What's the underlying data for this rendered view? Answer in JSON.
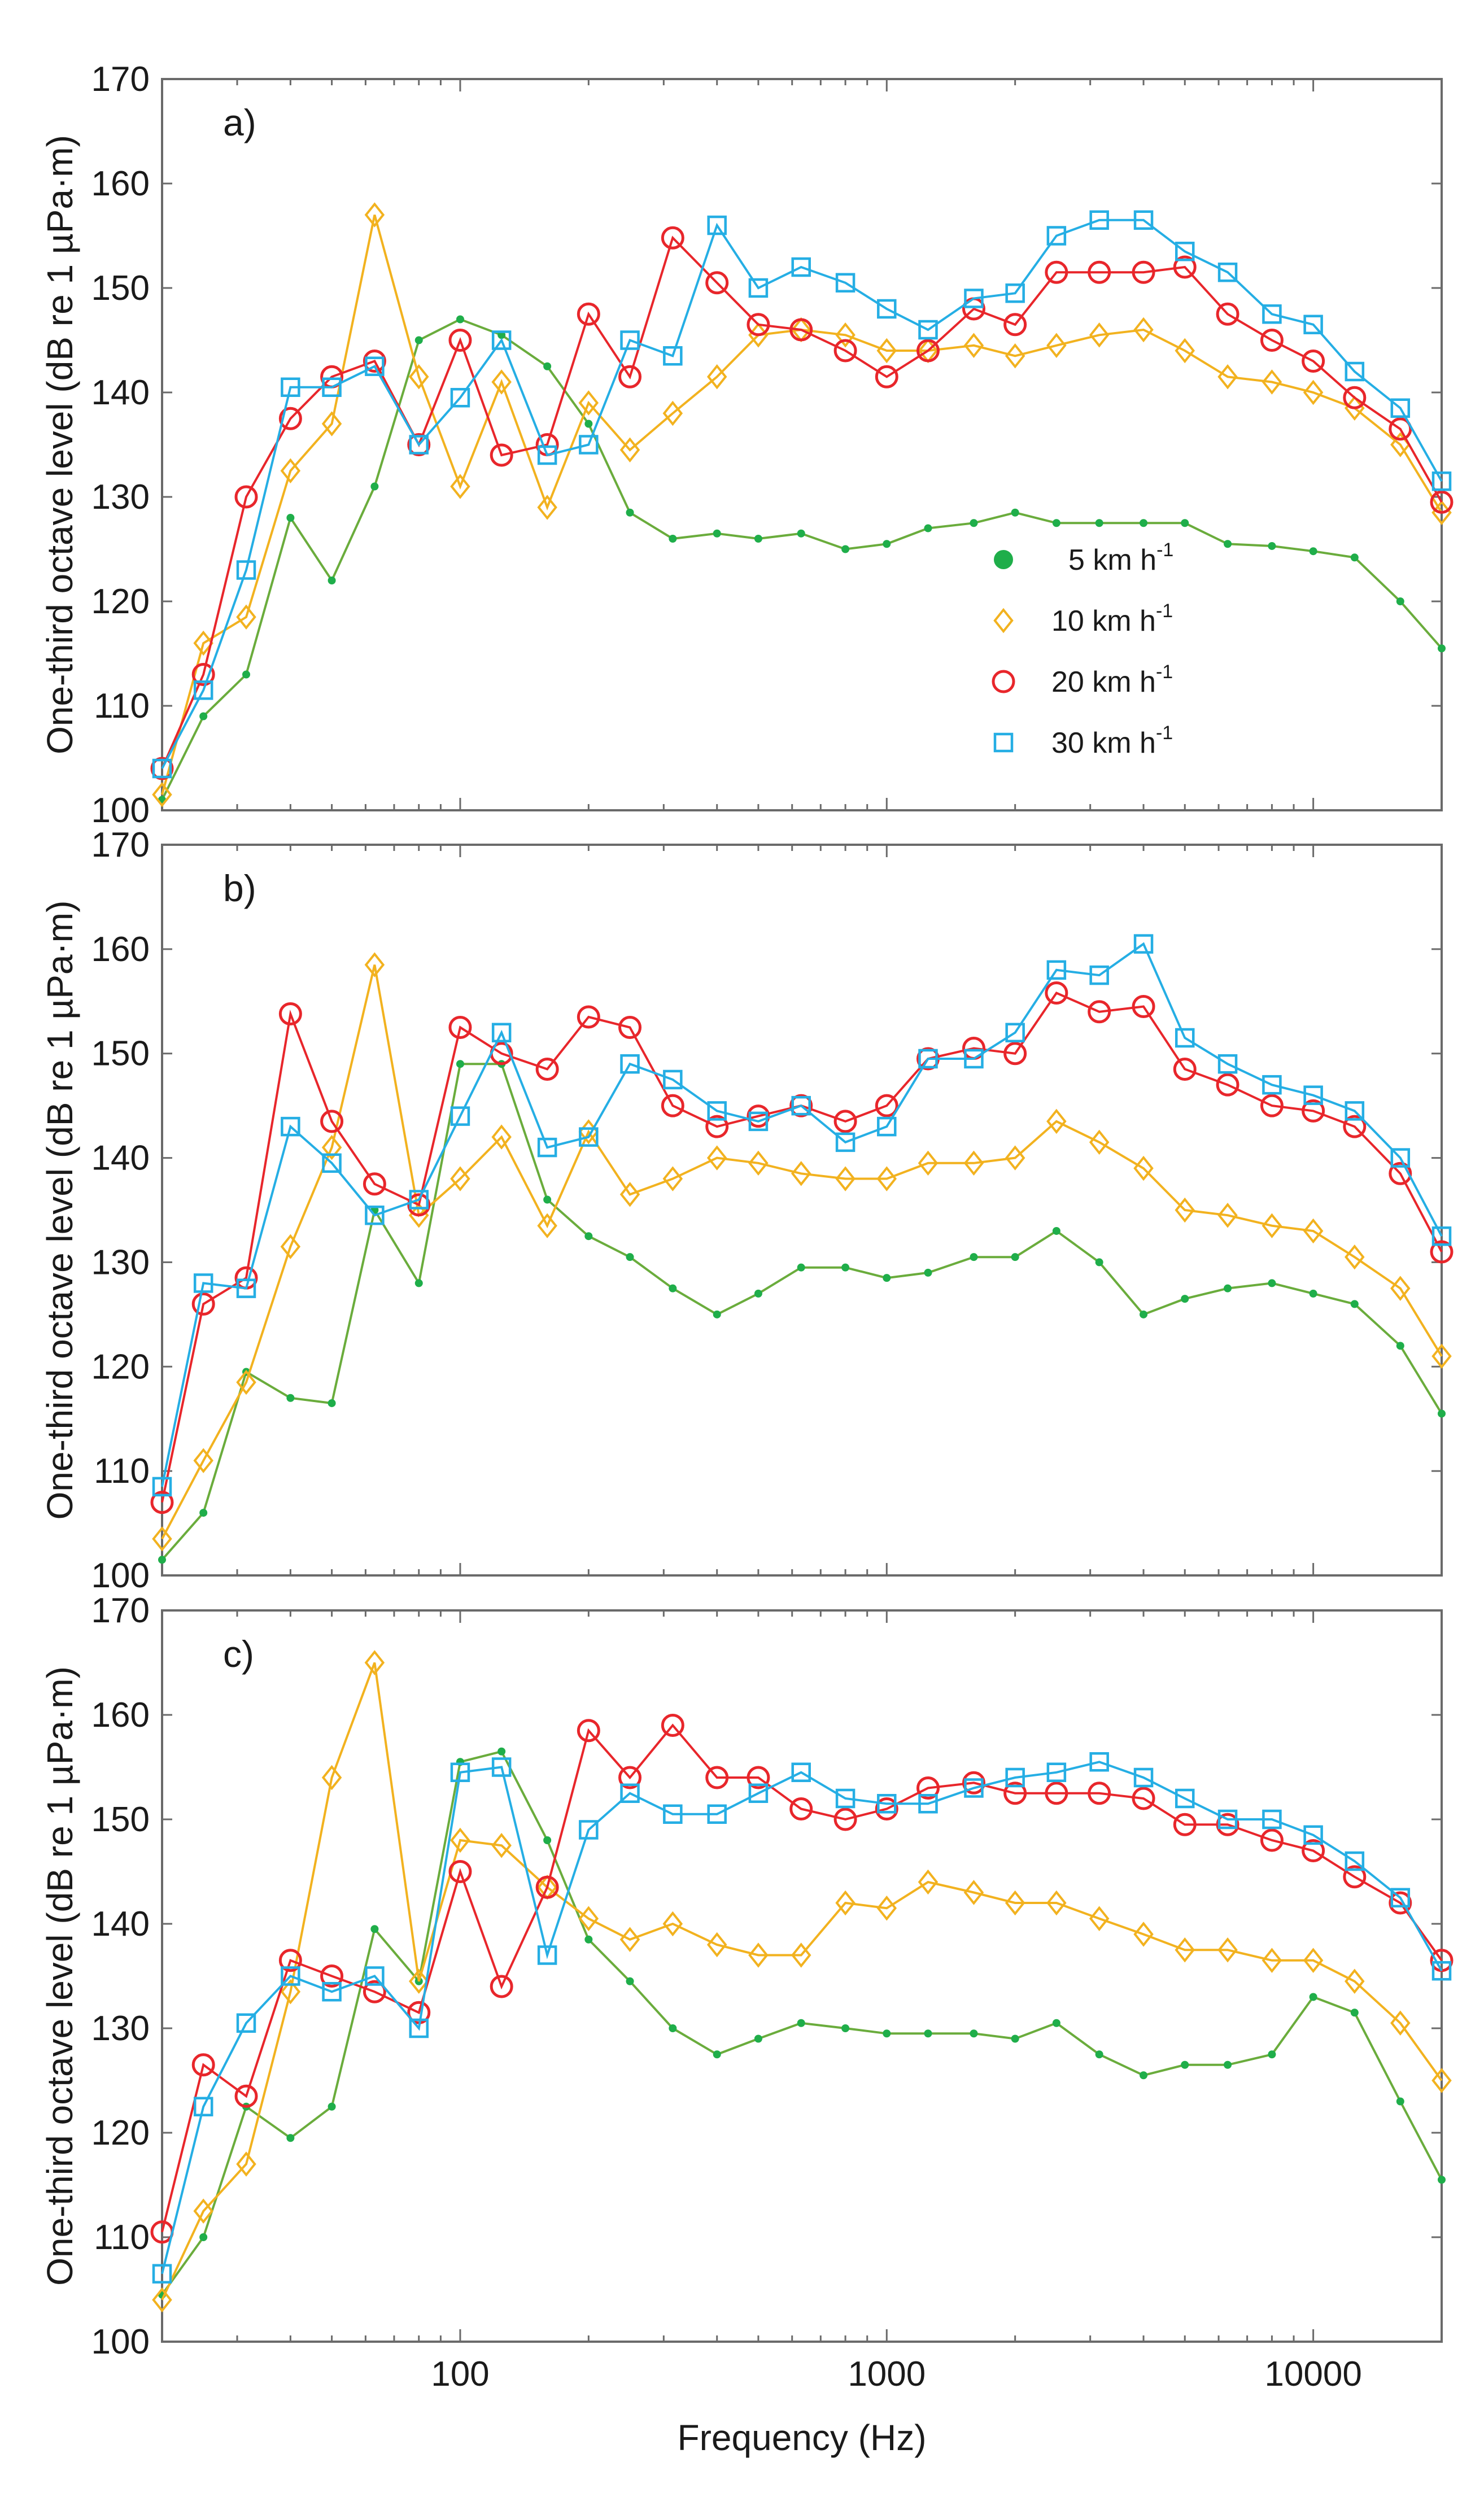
{
  "chart_data": [
    {
      "type": "line",
      "panel_label": "a)",
      "xscale": "log",
      "xlim": [
        20,
        20000
      ],
      "ylim": [
        100,
        170
      ],
      "ylabel": "One-third octave level (dB re 1 µPa·m)",
      "xticks": [
        100,
        1000,
        10000
      ],
      "xtick_labels": [
        "",
        "",
        ""
      ],
      "yticks": [
        100,
        110,
        120,
        130,
        140,
        150,
        160,
        170
      ],
      "ytick_labels": [
        "100",
        "110",
        "120",
        "130",
        "140",
        "150",
        "160",
        "170"
      ],
      "x": [
        20,
        25,
        31.5,
        40,
        50,
        63,
        80,
        100,
        125,
        160,
        200,
        250,
        315,
        400,
        500,
        630,
        800,
        1000,
        1250,
        1600,
        2000,
        2500,
        3150,
        4000,
        5000,
        6300,
        8000,
        10000,
        12500,
        16000,
        20000
      ],
      "series": [
        {
          "name": "5 km h-1",
          "values": [
            101,
            109,
            113,
            128,
            122,
            131,
            145,
            147,
            145.5,
            142.5,
            137,
            128.5,
            126,
            126.5,
            126,
            126.5,
            125,
            125.5,
            127,
            127.5,
            128.5,
            127.5,
            127.5,
            127.5,
            127.5,
            125.5,
            125.3,
            124.8,
            124.2,
            120,
            115.5
          ]
        },
        {
          "name": "10 km h-1",
          "values": [
            101.5,
            116,
            118.5,
            132.5,
            137,
            157,
            141.5,
            131,
            141,
            129,
            139,
            134.5,
            138,
            141.5,
            145.5,
            146,
            145.5,
            144,
            144,
            144.5,
            143.5,
            144.5,
            145.5,
            146,
            144,
            141.5,
            141,
            140,
            138.5,
            135,
            128.5
          ]
        },
        {
          "name": "20 km h-1",
          "values": [
            104,
            113,
            130,
            137.5,
            141.5,
            143,
            135,
            145,
            134,
            135,
            147.5,
            141.5,
            154.8,
            150.5,
            146.5,
            146,
            144,
            141.5,
            144,
            148,
            146.5,
            151.5,
            151.5,
            151.5,
            152,
            147.5,
            145,
            143,
            139.5,
            136.5,
            129.5
          ]
        },
        {
          "name": "30 km h-1",
          "values": [
            104,
            111.5,
            123,
            140.5,
            140.5,
            142.5,
            135,
            139.5,
            145,
            134,
            135,
            145,
            143.5,
            156,
            150,
            152,
            150.5,
            148,
            146,
            149,
            149.5,
            155,
            156.5,
            156.5,
            153.5,
            151.5,
            147.5,
            146.5,
            142,
            138.5,
            131.5
          ]
        }
      ]
    },
    {
      "type": "line",
      "panel_label": "b)",
      "xscale": "log",
      "xlim": [
        20,
        20000
      ],
      "ylim": [
        100,
        170
      ],
      "ylabel": "One-third octave level (dB re 1 µPa·m)",
      "xticks": [
        100,
        1000,
        10000
      ],
      "xtick_labels": [
        "",
        "",
        ""
      ],
      "yticks": [
        100,
        110,
        120,
        130,
        140,
        150,
        160,
        170
      ],
      "ytick_labels": [
        "100",
        "110",
        "120",
        "130",
        "140",
        "150",
        "160",
        "170"
      ],
      "x": [
        20,
        25,
        31.5,
        40,
        50,
        63,
        80,
        100,
        125,
        160,
        200,
        250,
        315,
        400,
        500,
        630,
        800,
        1000,
        1250,
        1600,
        2000,
        2500,
        3150,
        4000,
        5000,
        6300,
        8000,
        10000,
        12500,
        16000,
        20000
      ],
      "series": [
        {
          "name": "5 km h-1",
          "values": [
            101.5,
            106,
            119.5,
            117,
            116.5,
            135,
            128,
            149,
            149,
            136,
            132.5,
            130.5,
            127.5,
            125,
            127,
            129.5,
            129.5,
            128.5,
            129,
            130.5,
            130.5,
            133,
            130,
            125,
            126.5,
            127.5,
            128,
            127,
            126,
            122,
            115.5
          ]
        },
        {
          "name": "10 km h-1",
          "values": [
            103.5,
            111,
            118.5,
            131.5,
            141,
            158.5,
            134.5,
            138,
            142,
            133.5,
            142.5,
            136.5,
            138,
            140,
            139.5,
            138.5,
            138,
            138,
            139.5,
            139.5,
            140,
            143.5,
            141.5,
            139,
            135,
            134.5,
            133.5,
            133,
            130.5,
            127.5,
            121
          ]
        },
        {
          "name": "20 km h-1",
          "values": [
            107,
            126,
            128.5,
            153.8,
            143.5,
            137.5,
            135.5,
            152.5,
            150,
            148.5,
            153.5,
            152.5,
            145,
            143,
            144,
            145,
            143.5,
            145,
            149.5,
            150.5,
            150,
            155.8,
            154,
            154.5,
            148.5,
            147,
            145,
            144.5,
            143,
            138.5,
            131
          ]
        },
        {
          "name": "30 km h-1",
          "values": [
            108.5,
            128,
            127.5,
            143,
            139.5,
            134.5,
            136,
            144,
            152,
            141,
            142,
            149,
            147.5,
            144.5,
            143.5,
            145,
            141.5,
            143,
            149.5,
            149.5,
            152,
            158,
            157.5,
            160.5,
            151.5,
            149,
            147,
            146,
            144.5,
            140,
            132.5
          ]
        }
      ]
    },
    {
      "type": "line",
      "panel_label": "c)",
      "xscale": "log",
      "xlim": [
        20,
        20000
      ],
      "ylim": [
        100,
        170
      ],
      "xlabel": "Frequency (Hz)",
      "ylabel": "One-third octave level (dB re 1 µPa·m)",
      "xticks": [
        100,
        1000,
        10000
      ],
      "xtick_labels": [
        "100",
        "1000",
        "10000"
      ],
      "yticks": [
        100,
        110,
        120,
        130,
        140,
        150,
        160,
        170
      ],
      "ytick_labels": [
        "100",
        "110",
        "120",
        "130",
        "140",
        "150",
        "160",
        "170"
      ],
      "x": [
        20,
        25,
        31.5,
        40,
        50,
        63,
        80,
        100,
        125,
        160,
        200,
        250,
        315,
        400,
        500,
        630,
        800,
        1000,
        1250,
        1600,
        2000,
        2500,
        3150,
        4000,
        5000,
        6300,
        8000,
        10000,
        12500,
        16000,
        20000
      ],
      "series": [
        {
          "name": "5 km h-1",
          "values": [
            104.5,
            110,
            122.5,
            119.5,
            122.5,
            139.5,
            134.5,
            155.5,
            156.5,
            148,
            138.5,
            134.5,
            130,
            127.5,
            129,
            130.5,
            130,
            129.5,
            129.5,
            129.5,
            129,
            130.5,
            127.5,
            125.5,
            126.5,
            126.5,
            127.5,
            133,
            131.5,
            123,
            115.5
          ]
        },
        {
          "name": "10 km h-1",
          "values": [
            104,
            112.5,
            117,
            133.5,
            154,
            165,
            134.5,
            148,
            147.5,
            143.5,
            140.5,
            138.5,
            140,
            138,
            137,
            137,
            142,
            141.5,
            144,
            143,
            142,
            142,
            140.5,
            139,
            137.5,
            137.5,
            136.5,
            136.5,
            134.5,
            130.5,
            125
          ]
        },
        {
          "name": "20 km h-1",
          "values": [
            110.5,
            126.5,
            123.5,
            136.5,
            135,
            133.5,
            131.5,
            145,
            134,
            143.5,
            158.5,
            154,
            159,
            154,
            154,
            151,
            150,
            151,
            153,
            153.5,
            152.5,
            152.5,
            152.5,
            152,
            149.5,
            149.5,
            148,
            147,
            144.5,
            142,
            136.5
          ]
        },
        {
          "name": "30 km h-1",
          "values": [
            106.5,
            122.5,
            130.5,
            135,
            133.5,
            135,
            130,
            154.5,
            155,
            137,
            149,
            152.5,
            150.5,
            150.5,
            152.5,
            154.5,
            152,
            151.5,
            151.5,
            153,
            154,
            154.5,
            155.5,
            154,
            152,
            150,
            150,
            148.5,
            146,
            142.5,
            135.5
          ]
        }
      ]
    }
  ],
  "legend": [
    {
      "label": "5 km h",
      "sup": "-1",
      "marker": "dot",
      "color": "#1fae4a",
      "line_color": "#6aac3c"
    },
    {
      "label": "10 km h",
      "sup": "-1",
      "marker": "diamond",
      "color": "#f2b21f",
      "line_color": "#f2b21f"
    },
    {
      "label": "20 km h",
      "sup": "-1",
      "marker": "circle",
      "color": "#e8262b",
      "line_color": "#e8262b"
    },
    {
      "label": "30 km h",
      "sup": "-1",
      "marker": "square",
      "color": "#25aee4",
      "line_color": "#25aee4"
    }
  ]
}
